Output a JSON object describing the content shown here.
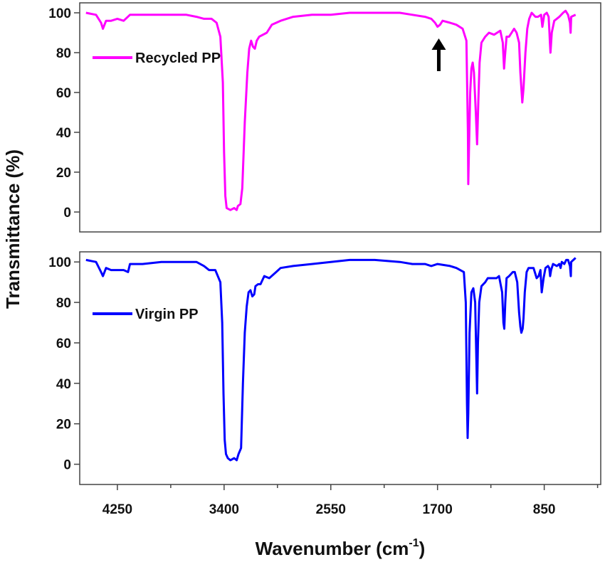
{
  "chart_data": {
    "type": "line",
    "ylabel": "Transmittance (%)",
    "xlabel": "Wavenumber (cm",
    "xlabel_sup": "-1",
    "xlabel_close": ")",
    "xlim": [
      4550,
      400
    ],
    "x_ticks": [
      4250,
      3400,
      2550,
      1700,
      850
    ],
    "x_tick_labels": [
      "4250",
      "3400",
      "2550",
      "1700",
      "850"
    ],
    "panels": [
      {
        "name": "Recycled PP",
        "color": "#ff00ff",
        "ylim": [
          -10,
          105
        ],
        "y_ticks": [
          0,
          20,
          40,
          60,
          80,
          100
        ],
        "y_tick_labels": [
          "0",
          "20",
          "40",
          "60",
          "80",
          "100"
        ],
        "legend_position": "top-left",
        "annotation": {
          "type": "arrow",
          "x": 1690,
          "y": 93,
          "direction": "up"
        },
        "points": [
          [
            4500,
            100
          ],
          [
            4420,
            99
          ],
          [
            4380,
            95
          ],
          [
            4365,
            92
          ],
          [
            4340,
            96
          ],
          [
            4300,
            96
          ],
          [
            4250,
            97
          ],
          [
            4200,
            96
          ],
          [
            4150,
            99
          ],
          [
            4050,
            99
          ],
          [
            3900,
            99
          ],
          [
            3800,
            99
          ],
          [
            3700,
            99
          ],
          [
            3620,
            98
          ],
          [
            3560,
            97
          ],
          [
            3500,
            97
          ],
          [
            3460,
            95
          ],
          [
            3430,
            88
          ],
          [
            3410,
            65
          ],
          [
            3400,
            30
          ],
          [
            3390,
            8
          ],
          [
            3380,
            2
          ],
          [
            3350,
            1
          ],
          [
            3320,
            2
          ],
          [
            3300,
            1
          ],
          [
            3290,
            3
          ],
          [
            3270,
            4
          ],
          [
            3255,
            12
          ],
          [
            3235,
            45
          ],
          [
            3215,
            70
          ],
          [
            3200,
            82
          ],
          [
            3185,
            86
          ],
          [
            3170,
            83
          ],
          [
            3155,
            82
          ],
          [
            3140,
            86
          ],
          [
            3120,
            88
          ],
          [
            3060,
            90
          ],
          [
            3020,
            94
          ],
          [
            2950,
            96
          ],
          [
            2850,
            98
          ],
          [
            2700,
            99
          ],
          [
            2550,
            99
          ],
          [
            2400,
            100
          ],
          [
            2200,
            100
          ],
          [
            2000,
            100
          ],
          [
            1900,
            99
          ],
          [
            1800,
            98
          ],
          [
            1750,
            97
          ],
          [
            1720,
            95
          ],
          [
            1700,
            93
          ],
          [
            1680,
            94
          ],
          [
            1660,
            96
          ],
          [
            1600,
            95
          ],
          [
            1550,
            94
          ],
          [
            1500,
            92
          ],
          [
            1470,
            86
          ],
          [
            1458,
            40
          ],
          [
            1455,
            14
          ],
          [
            1450,
            30
          ],
          [
            1440,
            60
          ],
          [
            1430,
            72
          ],
          [
            1420,
            75
          ],
          [
            1410,
            70
          ],
          [
            1395,
            50
          ],
          [
            1385,
            34
          ],
          [
            1375,
            55
          ],
          [
            1365,
            75
          ],
          [
            1350,
            85
          ],
          [
            1320,
            88
          ],
          [
            1290,
            90
          ],
          [
            1250,
            89
          ],
          [
            1225,
            90
          ],
          [
            1200,
            91
          ],
          [
            1180,
            85
          ],
          [
            1170,
            72
          ],
          [
            1163,
            78
          ],
          [
            1150,
            88
          ],
          [
            1130,
            88
          ],
          [
            1110,
            90
          ],
          [
            1090,
            92
          ],
          [
            1070,
            90
          ],
          [
            1050,
            85
          ],
          [
            1040,
            70
          ],
          [
            1030,
            60
          ],
          [
            1025,
            55
          ],
          [
            1015,
            62
          ],
          [
            1000,
            80
          ],
          [
            985,
            92
          ],
          [
            970,
            97
          ],
          [
            950,
            100
          ],
          [
            920,
            98
          ],
          [
            900,
            98
          ],
          [
            875,
            99
          ],
          [
            865,
            93
          ],
          [
            850,
            99
          ],
          [
            830,
            100
          ],
          [
            815,
            98
          ],
          [
            808,
            90
          ],
          [
            805,
            85
          ],
          [
            800,
            80
          ],
          [
            790,
            90
          ],
          [
            770,
            96
          ],
          [
            750,
            97
          ],
          [
            730,
            98
          ],
          [
            700,
            100
          ],
          [
            680,
            101
          ],
          [
            660,
            99
          ],
          [
            645,
            95
          ],
          [
            640,
            90
          ],
          [
            635,
            98
          ],
          [
            600,
            99
          ]
        ]
      },
      {
        "name": "Virgin PP",
        "color": "#0000ff",
        "ylim": [
          -10,
          105
        ],
        "y_ticks": [
          0,
          20,
          40,
          60,
          80,
          100
        ],
        "y_tick_labels": [
          "0",
          "20",
          "40",
          "60",
          "80",
          "100"
        ],
        "legend_position": "top-left",
        "points": [
          [
            4500,
            101
          ],
          [
            4420,
            100
          ],
          [
            4380,
            95
          ],
          [
            4365,
            93
          ],
          [
            4340,
            97
          ],
          [
            4300,
            96
          ],
          [
            4250,
            96
          ],
          [
            4200,
            96
          ],
          [
            4165,
            95
          ],
          [
            4150,
            99
          ],
          [
            4050,
            99
          ],
          [
            3900,
            100
          ],
          [
            3800,
            100
          ],
          [
            3700,
            100
          ],
          [
            3620,
            100
          ],
          [
            3560,
            98
          ],
          [
            3520,
            96
          ],
          [
            3470,
            96
          ],
          [
            3430,
            90
          ],
          [
            3415,
            70
          ],
          [
            3405,
            35
          ],
          [
            3395,
            12
          ],
          [
            3385,
            5
          ],
          [
            3370,
            3
          ],
          [
            3350,
            2
          ],
          [
            3320,
            3
          ],
          [
            3300,
            2
          ],
          [
            3285,
            5
          ],
          [
            3265,
            8
          ],
          [
            3250,
            40
          ],
          [
            3235,
            65
          ],
          [
            3220,
            78
          ],
          [
            3205,
            85
          ],
          [
            3190,
            86
          ],
          [
            3175,
            83
          ],
          [
            3160,
            84
          ],
          [
            3150,
            88
          ],
          [
            3130,
            89
          ],
          [
            3110,
            89
          ],
          [
            3080,
            93
          ],
          [
            3040,
            92
          ],
          [
            2985,
            95
          ],
          [
            2950,
            97
          ],
          [
            2850,
            98
          ],
          [
            2700,
            99
          ],
          [
            2550,
            100
          ],
          [
            2400,
            101
          ],
          [
            2200,
            101
          ],
          [
            2000,
            100
          ],
          [
            1900,
            99
          ],
          [
            1800,
            99
          ],
          [
            1750,
            98
          ],
          [
            1700,
            99
          ],
          [
            1600,
            98
          ],
          [
            1550,
            97
          ],
          [
            1490,
            95
          ],
          [
            1475,
            80
          ],
          [
            1465,
            30
          ],
          [
            1460,
            13
          ],
          [
            1455,
            25
          ],
          [
            1445,
            65
          ],
          [
            1430,
            85
          ],
          [
            1415,
            87
          ],
          [
            1400,
            80
          ],
          [
            1390,
            50
          ],
          [
            1385,
            35
          ],
          [
            1378,
            60
          ],
          [
            1368,
            80
          ],
          [
            1350,
            88
          ],
          [
            1320,
            90
          ],
          [
            1300,
            92
          ],
          [
            1285,
            92
          ],
          [
            1260,
            92
          ],
          [
            1230,
            92
          ],
          [
            1210,
            93
          ],
          [
            1185,
            85
          ],
          [
            1175,
            70
          ],
          [
            1168,
            67
          ],
          [
            1160,
            80
          ],
          [
            1150,
            92
          ],
          [
            1130,
            93
          ],
          [
            1100,
            95
          ],
          [
            1085,
            95
          ],
          [
            1065,
            90
          ],
          [
            1050,
            75
          ],
          [
            1040,
            68
          ],
          [
            1032,
            65
          ],
          [
            1022,
            67
          ],
          [
            1015,
            72
          ],
          [
            1005,
            85
          ],
          [
            990,
            95
          ],
          [
            975,
            97
          ],
          [
            960,
            97
          ],
          [
            935,
            97
          ],
          [
            910,
            92
          ],
          [
            895,
            93
          ],
          [
            880,
            96
          ],
          [
            870,
            85
          ],
          [
            855,
            92
          ],
          [
            840,
            97
          ],
          [
            820,
            98
          ],
          [
            810,
            97
          ],
          [
            803,
            93
          ],
          [
            795,
            96
          ],
          [
            780,
            99
          ],
          [
            750,
            98
          ],
          [
            730,
            99
          ],
          [
            720,
            97
          ],
          [
            710,
            100
          ],
          [
            690,
            99
          ],
          [
            675,
            101
          ],
          [
            660,
            101
          ],
          [
            645,
            98
          ],
          [
            638,
            93
          ],
          [
            635,
            100
          ],
          [
            600,
            102
          ]
        ]
      }
    ]
  }
}
